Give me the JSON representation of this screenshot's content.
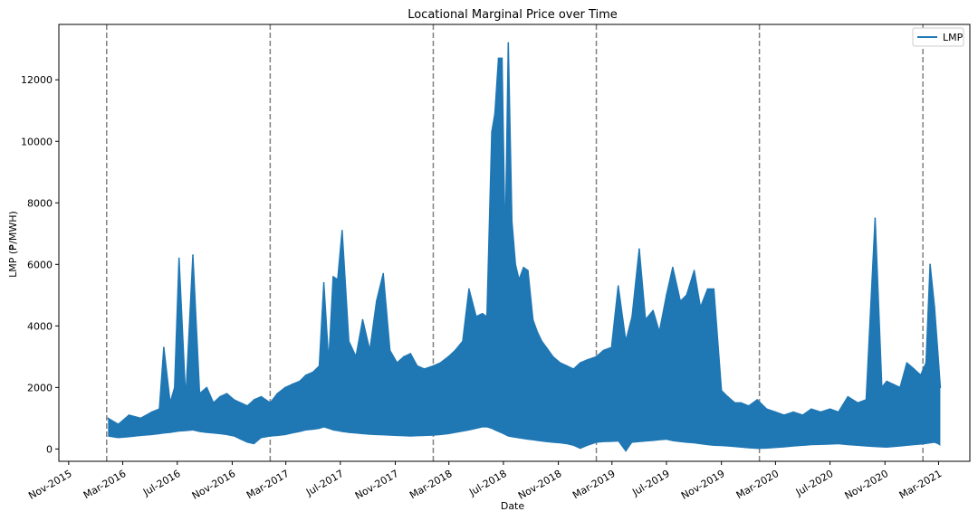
{
  "chart_data": {
    "type": "line",
    "title": "Locational Marginal Price over Time",
    "xlabel": "Date",
    "ylabel": "LMP (₱/MWH)",
    "x_range": [
      "2015-10-10",
      "2021-05-10"
    ],
    "ylim": [
      -400,
      13800
    ],
    "y_ticks": [
      0,
      2000,
      4000,
      6000,
      8000,
      10000,
      12000
    ],
    "x_ticks": [
      {
        "date": "2015-11-01",
        "label": "Nov-2015"
      },
      {
        "date": "2016-03-01",
        "label": "Mar-2016"
      },
      {
        "date": "2016-07-01",
        "label": "Jul-2016"
      },
      {
        "date": "2016-11-01",
        "label": "Nov-2016"
      },
      {
        "date": "2017-03-01",
        "label": "Mar-2017"
      },
      {
        "date": "2017-07-01",
        "label": "Jul-2017"
      },
      {
        "date": "2017-11-01",
        "label": "Nov-2017"
      },
      {
        "date": "2018-03-01",
        "label": "Mar-2018"
      },
      {
        "date": "2018-07-01",
        "label": "Jul-2018"
      },
      {
        "date": "2018-11-01",
        "label": "Nov-2018"
      },
      {
        "date": "2019-03-01",
        "label": "Mar-2019"
      },
      {
        "date": "2019-07-01",
        "label": "Jul-2019"
      },
      {
        "date": "2019-11-01",
        "label": "Nov-2019"
      },
      {
        "date": "2020-03-01",
        "label": "Mar-2020"
      },
      {
        "date": "2020-07-01",
        "label": "Jul-2020"
      },
      {
        "date": "2020-11-01",
        "label": "Nov-2020"
      },
      {
        "date": "2021-03-01",
        "label": "Mar-2021"
      }
    ],
    "vlines": [
      "2016-01-25",
      "2017-01-25",
      "2018-01-25",
      "2019-01-25",
      "2020-01-25",
      "2021-01-25"
    ],
    "vline_color": "#808080",
    "grid": false,
    "legend_position": "top-right",
    "series": [
      {
        "name": "LMP",
        "color": "#1f77b4",
        "x": [
          "2016-01-28",
          "2016-02-20",
          "2016-03-15",
          "2016-04-10",
          "2016-05-05",
          "2016-05-22",
          "2016-06-01",
          "2016-06-15",
          "2016-06-25",
          "2016-07-05",
          "2016-07-20",
          "2016-08-05",
          "2016-08-20",
          "2016-09-05",
          "2016-09-20",
          "2016-10-05",
          "2016-10-20",
          "2016-11-05",
          "2016-11-20",
          "2016-12-05",
          "2016-12-20",
          "2017-01-05",
          "2017-01-25",
          "2017-02-10",
          "2017-02-28",
          "2017-03-15",
          "2017-04-01",
          "2017-04-15",
          "2017-05-01",
          "2017-05-15",
          "2017-05-25",
          "2017-06-05",
          "2017-06-15",
          "2017-06-25",
          "2017-07-05",
          "2017-07-20",
          "2017-08-05",
          "2017-08-20",
          "2017-09-05",
          "2017-09-20",
          "2017-10-05",
          "2017-10-20",
          "2017-11-05",
          "2017-11-20",
          "2017-12-05",
          "2017-12-20",
          "2018-01-05",
          "2018-01-25",
          "2018-02-10",
          "2018-02-28",
          "2018-03-15",
          "2018-04-01",
          "2018-04-15",
          "2018-05-01",
          "2018-05-15",
          "2018-05-25",
          "2018-06-05",
          "2018-06-12",
          "2018-06-20",
          "2018-06-28",
          "2018-07-05",
          "2018-07-12",
          "2018-07-20",
          "2018-07-28",
          "2018-08-05",
          "2018-08-15",
          "2018-08-25",
          "2018-09-05",
          "2018-09-15",
          "2018-09-25",
          "2018-10-05",
          "2018-10-20",
          "2018-11-05",
          "2018-11-20",
          "2018-12-05",
          "2018-12-20",
          "2019-01-05",
          "2019-01-25",
          "2019-02-10",
          "2019-02-28",
          "2019-03-15",
          "2019-04-01",
          "2019-04-15",
          "2019-05-01",
          "2019-05-15",
          "2019-06-01",
          "2019-06-15",
          "2019-07-01",
          "2019-07-15",
          "2019-08-01",
          "2019-08-15",
          "2019-09-01",
          "2019-09-15",
          "2019-10-01",
          "2019-10-15",
          "2019-11-01",
          "2019-11-15",
          "2019-12-01",
          "2019-12-15",
          "2020-01-01",
          "2020-01-20",
          "2020-02-10",
          "2020-03-01",
          "2020-03-20",
          "2020-04-10",
          "2020-05-01",
          "2020-05-20",
          "2020-06-10",
          "2020-07-01",
          "2020-07-20",
          "2020-08-10",
          "2020-09-01",
          "2020-09-20",
          "2020-10-10",
          "2020-10-25",
          "2020-11-05",
          "2020-11-20",
          "2020-12-05",
          "2020-12-20",
          "2021-01-05",
          "2021-01-20",
          "2021-02-01",
          "2021-02-10",
          "2021-02-20",
          "2021-02-28",
          "2021-03-05"
        ],
        "y": [
          1000,
          800,
          1100,
          1000,
          1200,
          1300,
          3300,
          1500,
          2000,
          6200,
          1600,
          6300,
          1800,
          2000,
          1500,
          1700,
          1800,
          1600,
          1500,
          1400,
          1600,
          1700,
          1500,
          1800,
          2000,
          2100,
          2200,
          2400,
          2500,
          2700,
          5400,
          2800,
          5600,
          5500,
          7100,
          3500,
          3000,
          4200,
          3200,
          4800,
          5700,
          3200,
          2800,
          3000,
          3100,
          2700,
          2600,
          2700,
          2800,
          3000,
          3200,
          3500,
          5200,
          4300,
          4400,
          4300,
          10300,
          10900,
          12700,
          12700,
          6500,
          13200,
          7400,
          6000,
          5500,
          5900,
          5800,
          4200,
          3800,
          3500,
          3300,
          3000,
          2800,
          2700,
          2600,
          2800,
          2900,
          3000,
          3200,
          3300,
          5300,
          3500,
          4300,
          6500,
          4200,
          4500,
          3800,
          5000,
          5900,
          4800,
          5000,
          5800,
          4600,
          5200,
          5200,
          1900,
          1700,
          1500,
          1500,
          1400,
          1600,
          1300,
          1200,
          1100,
          1200,
          1100,
          1300,
          1200,
          1300,
          1200,
          1700,
          1500,
          1600,
          7500,
          2000,
          2200,
          2100,
          2000,
          2800,
          2600,
          2400,
          2800,
          6000,
          4600,
          3000,
          2000
        ],
        "y_low": [
          400,
          350,
          380,
          420,
          450,
          480,
          500,
          520,
          540,
          560,
          580,
          600,
          550,
          520,
          500,
          480,
          450,
          400,
          300,
          200,
          150,
          350,
          400,
          420,
          450,
          500,
          550,
          600,
          620,
          650,
          700,
          650,
          600,
          580,
          550,
          520,
          500,
          480,
          460,
          450,
          440,
          430,
          420,
          410,
          400,
          410,
          420,
          430,
          450,
          480,
          520,
          560,
          600,
          650,
          700,
          700,
          650,
          600,
          550,
          500,
          450,
          400,
          380,
          360,
          340,
          320,
          300,
          280,
          260,
          240,
          220,
          200,
          180,
          150,
          100,
          0,
          100,
          200,
          220,
          230,
          240,
          -100,
          200,
          220,
          240,
          260,
          280,
          300,
          250,
          220,
          200,
          180,
          150,
          120,
          100,
          90,
          80,
          60,
          40,
          20,
          0,
          10,
          30,
          50,
          80,
          100,
          120,
          130,
          140,
          150,
          120,
          100,
          80,
          60,
          50,
          40,
          60,
          80,
          100,
          120,
          140,
          160,
          180,
          200,
          150,
          100
        ]
      }
    ]
  }
}
